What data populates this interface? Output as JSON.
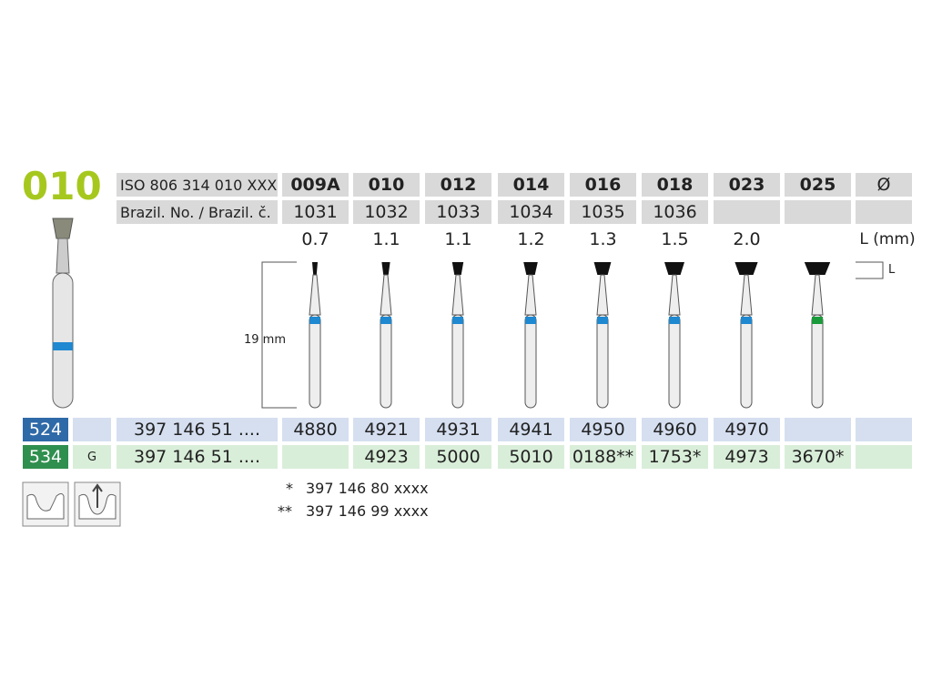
{
  "header": {
    "title": "010"
  },
  "table": {
    "header_row": {
      "label": "ISO 806 314 010 XXX ...",
      "sizes": [
        "009A",
        "010",
        "012",
        "014",
        "016",
        "018",
        "023",
        "025"
      ],
      "diameter": "Ø"
    },
    "brazil_row": {
      "label": "Brazil. No. / Brazil. č.",
      "values": [
        "1031",
        "1032",
        "1033",
        "1034",
        "1035",
        "1036",
        null,
        null
      ]
    },
    "length_row": {
      "values": [
        "0.7",
        "1.1",
        "1.1",
        "1.2",
        "1.3",
        "1.5",
        "2.0",
        null
      ],
      "unit": "L (mm)"
    },
    "rows": [
      {
        "code": "524",
        "grade": null,
        "ref": "397 146 51 ....",
        "values": [
          "4880",
          "4921",
          "4931",
          "4941",
          "4950",
          "4960",
          "4970",
          null
        ]
      },
      {
        "code": "534",
        "grade": "G",
        "ref": "397 146 51 ....",
        "values": [
          null,
          "4923",
          "5000",
          "5010",
          "0188**",
          "1753*",
          "4973",
          "3670*"
        ]
      }
    ]
  },
  "diagram": {
    "shank_length": "19 mm",
    "length_symbol": "L"
  },
  "footnotes": [
    {
      "mark": "*",
      "text": "397 146 80 xxxx"
    },
    {
      "mark": "**",
      "text": "397 146 99 xxxx"
    }
  ]
}
